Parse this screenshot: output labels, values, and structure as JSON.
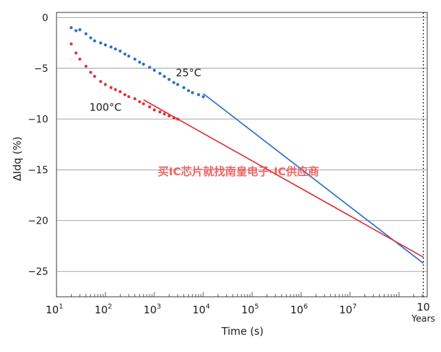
{
  "chart_data": {
    "type": "scatter",
    "xlabel": "Time (s)",
    "ylabel": "ΔIdq (%)",
    "x_scale": "log",
    "xlim": [
      10,
      315360000
    ],
    "ylim": [
      -27.5,
      0.5
    ],
    "grid": true,
    "x_ticks": [
      {
        "value": 10,
        "label": "10",
        "sup": "1"
      },
      {
        "value": 100,
        "label": "10",
        "sup": "2"
      },
      {
        "value": 1000,
        "label": "10",
        "sup": "3"
      },
      {
        "value": 10000,
        "label": "10",
        "sup": "4"
      },
      {
        "value": 100000,
        "label": "10",
        "sup": "5"
      },
      {
        "value": 1000000,
        "label": "10",
        "sup": "6"
      },
      {
        "value": 10000000,
        "label": "10",
        "sup": "7"
      }
    ],
    "x_marker": {
      "value": 315360000,
      "label": "10",
      "sublabel": "Years"
    },
    "y_ticks": [
      0,
      -5,
      -10,
      -15,
      -20,
      -25
    ],
    "series": [
      {
        "name": "25°C",
        "color": "#2f6fc9",
        "points": [
          [
            20,
            -1.0
          ],
          [
            25,
            -1.3
          ],
          [
            30,
            -1.2
          ],
          [
            40,
            -1.6
          ],
          [
            50,
            -2.0
          ],
          [
            60,
            -2.3
          ],
          [
            80,
            -2.5
          ],
          [
            100,
            -2.7
          ],
          [
            130,
            -2.9
          ],
          [
            160,
            -3.1
          ],
          [
            200,
            -3.3
          ],
          [
            250,
            -3.6
          ],
          [
            300,
            -3.8
          ],
          [
            400,
            -4.1
          ],
          [
            500,
            -4.4
          ],
          [
            600,
            -4.6
          ],
          [
            800,
            -4.9
          ],
          [
            1000,
            -5.2
          ],
          [
            1300,
            -5.5
          ],
          [
            1600,
            -5.8
          ],
          [
            2000,
            -6.1
          ],
          [
            2500,
            -6.4
          ],
          [
            3000,
            -6.6
          ],
          [
            4000,
            -6.9
          ],
          [
            5000,
            -7.2
          ],
          [
            6000,
            -7.4
          ],
          [
            8000,
            -7.6
          ],
          [
            10000,
            -7.8
          ]
        ],
        "fit": [
          [
            10000,
            -7.5
          ],
          [
            315360000,
            -24.2
          ]
        ]
      },
      {
        "name": "100°C",
        "color": "#e0343c",
        "points": [
          [
            20,
            -2.6
          ],
          [
            25,
            -3.5
          ],
          [
            30,
            -4.1
          ],
          [
            40,
            -4.8
          ],
          [
            50,
            -5.4
          ],
          [
            60,
            -5.8
          ],
          [
            80,
            -6.3
          ],
          [
            100,
            -6.6
          ],
          [
            130,
            -6.9
          ],
          [
            160,
            -7.1
          ],
          [
            200,
            -7.3
          ],
          [
            250,
            -7.6
          ],
          [
            300,
            -7.8
          ],
          [
            400,
            -8.0
          ],
          [
            500,
            -8.3
          ],
          [
            600,
            -8.5
          ],
          [
            800,
            -8.8
          ],
          [
            1000,
            -9.1
          ],
          [
            1300,
            -9.3
          ],
          [
            1600,
            -9.5
          ],
          [
            2000,
            -9.7
          ],
          [
            2500,
            -9.9
          ],
          [
            3000,
            -10.0
          ]
        ],
        "fit": [
          [
            600,
            -8.1
          ],
          [
            315360000,
            -23.6
          ]
        ]
      }
    ],
    "annotations": [
      {
        "text": "25°C",
        "x": 5000,
        "y": -5.8
      },
      {
        "text": "100°C",
        "x": 100,
        "y": -9.2
      }
    ]
  },
  "watermark": "买IC芯片就找南皇电子-IC供应商"
}
